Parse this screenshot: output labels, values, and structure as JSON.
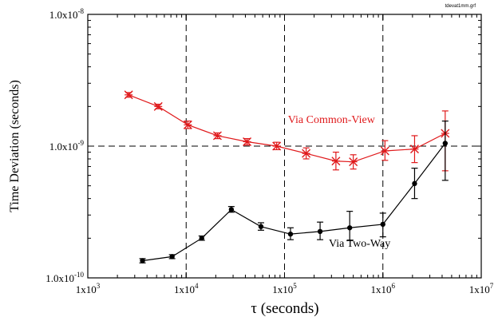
{
  "file_tag": "tdevat1mm.grf",
  "chart_data": {
    "type": "scatter",
    "title": "",
    "xlabel": "τ (seconds)",
    "ylabel": "Time Deviation (seconds)",
    "x_scale": "log",
    "y_scale": "log",
    "xlim": [
      1000,
      10000000
    ],
    "ylim": [
      1e-10,
      1e-08
    ],
    "x_ticks": [
      {
        "value": 1000,
        "mantissa": "1x10",
        "exp": "3"
      },
      {
        "value": 10000,
        "mantissa": "1x10",
        "exp": "4"
      },
      {
        "value": 100000,
        "mantissa": "1x10",
        "exp": "5"
      },
      {
        "value": 1000000,
        "mantissa": "1x10",
        "exp": "6"
      },
      {
        "value": 10000000,
        "mantissa": "1x10",
        "exp": "7"
      }
    ],
    "y_ticks": [
      {
        "value": 1e-10,
        "mantissa": "1.0x10",
        "exp": "-10"
      },
      {
        "value": 1e-09,
        "mantissa": "1.0x10",
        "exp": "-9"
      },
      {
        "value": 1e-08,
        "mantissa": "1.0x10",
        "exp": "-8"
      }
    ],
    "dashed_gridlines": {
      "x": [
        10000,
        100000,
        1000000
      ],
      "y": [
        1e-09
      ]
    },
    "series": [
      {
        "name": "Via Common-View",
        "color": "#e0191b",
        "marker": "x",
        "label_anchor": {
          "x": 300000,
          "y": 1.5e-09
        },
        "points": [
          {
            "x": 2600,
            "y": 2.45e-09,
            "lo": 2.35e-09,
            "hi": 2.55e-09
          },
          {
            "x": 5200,
            "y": 2e-09,
            "lo": 1.92e-09,
            "hi": 2.08e-09
          },
          {
            "x": 10400,
            "y": 1.45e-09,
            "lo": 1.36e-09,
            "hi": 1.55e-09
          },
          {
            "x": 20800,
            "y": 1.2e-09,
            "lo": 1.14e-09,
            "hi": 1.26e-09
          },
          {
            "x": 41600,
            "y": 1.08e-09,
            "lo": 1.02e-09,
            "hi": 1.14e-09
          },
          {
            "x": 83200,
            "y": 1e-09,
            "lo": 9.4e-10,
            "hi": 1.07e-09
          },
          {
            "x": 166000,
            "y": 8.8e-10,
            "lo": 8e-10,
            "hi": 9.7e-10
          },
          {
            "x": 333000,
            "y": 7.7e-10,
            "lo": 6.6e-10,
            "hi": 9e-10
          },
          {
            "x": 500000,
            "y": 7.6e-10,
            "lo": 6.7e-10,
            "hi": 8.6e-10
          },
          {
            "x": 1050000,
            "y": 9.2e-10,
            "lo": 7.8e-10,
            "hi": 1.1e-09
          },
          {
            "x": 2100000,
            "y": 9.5e-10,
            "lo": 7.5e-10,
            "hi": 1.2e-09
          },
          {
            "x": 4300000,
            "y": 1.25e-09,
            "lo": 6.5e-10,
            "hi": 1.85e-09
          }
        ]
      },
      {
        "name": "Via Two-Way",
        "color": "#000000",
        "marker": "dot",
        "label_anchor": {
          "x": 580000,
          "y": 1.72e-10
        },
        "points": [
          {
            "x": 3600,
            "y": 1.35e-10,
            "lo": 1.3e-10,
            "hi": 1.4e-10
          },
          {
            "x": 7200,
            "y": 1.45e-10,
            "lo": 1.4e-10,
            "hi": 1.5e-10
          },
          {
            "x": 14400,
            "y": 2e-10,
            "lo": 1.93e-10,
            "hi": 2.08e-10
          },
          {
            "x": 28800,
            "y": 3.3e-10,
            "lo": 3.15e-10,
            "hi": 3.48e-10
          },
          {
            "x": 57600,
            "y": 2.45e-10,
            "lo": 2.3e-10,
            "hi": 2.62e-10
          },
          {
            "x": 115000,
            "y": 2.15e-10,
            "lo": 1.95e-10,
            "hi": 2.4e-10
          },
          {
            "x": 230000,
            "y": 2.25e-10,
            "lo": 1.95e-10,
            "hi": 2.65e-10
          },
          {
            "x": 460000,
            "y": 2.4e-10,
            "lo": 1.92e-10,
            "hi": 3.2e-10
          },
          {
            "x": 1000000,
            "y": 2.55e-10,
            "lo": 2.05e-10,
            "hi": 3.1e-10
          },
          {
            "x": 2100000,
            "y": 5.2e-10,
            "lo": 4e-10,
            "hi": 6.8e-10
          },
          {
            "x": 4300000,
            "y": 1.05e-09,
            "lo": 5.5e-10,
            "hi": 1.55e-09
          }
        ]
      }
    ]
  }
}
